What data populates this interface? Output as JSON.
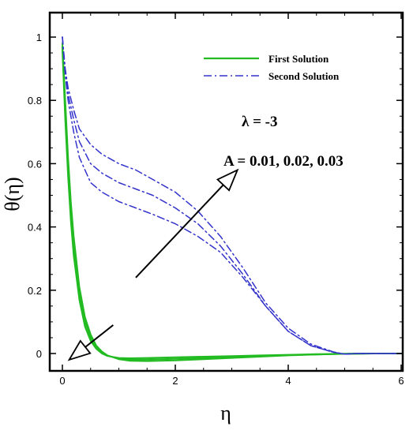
{
  "chart_data": {
    "type": "line",
    "xlabel": "η",
    "ylabel": "θ(η)",
    "xlim": [
      0,
      6
    ],
    "ylim": [
      -0.05,
      1.05
    ],
    "xticks": [
      0,
      2,
      4,
      6
    ],
    "yticks": [
      0,
      0.2,
      0.4,
      0.6,
      0.8,
      1
    ],
    "grid": false,
    "legend_position": "top-right",
    "legend": [
      {
        "label": "First Solution",
        "style": "solid",
        "color": "#22bb22"
      },
      {
        "label": "Second Solution",
        "style": "dash-dot",
        "color": "#3333cc"
      }
    ],
    "annotations": {
      "lambda": "λ = -3",
      "A_values": "A = 0.01, 0.02, 0.03"
    },
    "series": [
      {
        "group": "first",
        "color": "#22bb22",
        "style": "solid",
        "x": [
          0,
          0.05,
          0.1,
          0.15,
          0.2,
          0.3,
          0.4,
          0.5,
          0.6,
          0.7,
          0.8,
          1.0,
          1.2,
          1.5,
          2.0,
          2.5,
          3.0,
          3.5,
          4.0,
          4.5,
          5.0,
          5.5,
          6.0
        ],
        "y": [
          0.96,
          0.74,
          0.56,
          0.42,
          0.31,
          0.17,
          0.085,
          0.04,
          0.015,
          0.0,
          -0.008,
          -0.014,
          -0.015,
          -0.014,
          -0.012,
          -0.01,
          -0.008,
          -0.006,
          -0.004,
          -0.002,
          -0.001,
          0.0,
          0.0
        ]
      },
      {
        "group": "first",
        "color": "#22bb22",
        "style": "solid",
        "x": [
          0,
          0.05,
          0.1,
          0.15,
          0.2,
          0.3,
          0.4,
          0.5,
          0.6,
          0.7,
          0.8,
          1.0,
          1.2,
          1.5,
          2.0,
          2.5,
          3.0,
          3.5,
          4.0,
          4.5,
          5.0,
          5.5,
          6.0
        ],
        "y": [
          0.97,
          0.77,
          0.59,
          0.45,
          0.34,
          0.19,
          0.1,
          0.05,
          0.02,
          0.003,
          -0.007,
          -0.016,
          -0.019,
          -0.019,
          -0.017,
          -0.014,
          -0.011,
          -0.008,
          -0.005,
          -0.003,
          -0.001,
          0.0,
          0.0
        ]
      },
      {
        "group": "first",
        "color": "#22bb22",
        "style": "solid",
        "x": [
          0,
          0.05,
          0.1,
          0.15,
          0.2,
          0.3,
          0.4,
          0.5,
          0.6,
          0.7,
          0.8,
          1.0,
          1.2,
          1.5,
          2.0,
          2.5,
          3.0,
          3.5,
          4.0,
          4.5,
          5.0,
          5.5,
          6.0
        ],
        "y": [
          0.98,
          0.8,
          0.62,
          0.48,
          0.37,
          0.21,
          0.115,
          0.06,
          0.025,
          0.006,
          -0.006,
          -0.018,
          -0.023,
          -0.024,
          -0.022,
          -0.018,
          -0.014,
          -0.01,
          -0.006,
          -0.003,
          -0.001,
          0.0,
          0.0
        ]
      },
      {
        "group": "second",
        "color": "#3333cc",
        "style": "dash-dot",
        "x": [
          0,
          0.05,
          0.1,
          0.2,
          0.3,
          0.5,
          0.7,
          1.0,
          1.3,
          1.6,
          2.0,
          2.4,
          2.8,
          3.2,
          3.6,
          4.0,
          4.4,
          4.8,
          5.0,
          5.2,
          5.5,
          6.0
        ],
        "y": [
          1.0,
          0.88,
          0.8,
          0.7,
          0.62,
          0.54,
          0.51,
          0.48,
          0.46,
          0.44,
          0.41,
          0.37,
          0.32,
          0.24,
          0.15,
          0.07,
          0.025,
          0.004,
          -0.002,
          0.0,
          0.0,
          0.0
        ]
      },
      {
        "group": "second",
        "color": "#3333cc",
        "style": "dash-dot",
        "x": [
          0,
          0.05,
          0.1,
          0.2,
          0.3,
          0.5,
          0.7,
          1.0,
          1.3,
          1.6,
          2.0,
          2.4,
          2.8,
          3.2,
          3.6,
          4.0,
          4.4,
          4.8,
          5.0,
          5.2,
          5.5,
          6.0
        ],
        "y": [
          1.0,
          0.89,
          0.82,
          0.74,
          0.67,
          0.6,
          0.57,
          0.54,
          0.52,
          0.5,
          0.46,
          0.41,
          0.34,
          0.25,
          0.15,
          0.07,
          0.025,
          0.004,
          -0.002,
          0.0,
          0.0,
          0.0
        ]
      },
      {
        "group": "second",
        "color": "#3333cc",
        "style": "dash-dot",
        "x": [
          0,
          0.05,
          0.1,
          0.2,
          0.3,
          0.5,
          0.7,
          1.0,
          1.3,
          1.6,
          2.0,
          2.4,
          2.8,
          3.2,
          3.6,
          4.0,
          4.4,
          4.8,
          5.0,
          5.2,
          5.5,
          6.0
        ],
        "y": [
          1.0,
          0.9,
          0.84,
          0.77,
          0.71,
          0.66,
          0.63,
          0.6,
          0.58,
          0.55,
          0.51,
          0.45,
          0.37,
          0.27,
          0.16,
          0.08,
          0.03,
          0.005,
          -0.002,
          0.0,
          0.0,
          0.0
        ]
      }
    ],
    "arrows": [
      {
        "from": [
          1.3,
          0.24
        ],
        "to": [
          3.1,
          0.58
        ],
        "direction": "up-right"
      },
      {
        "from": [
          0.9,
          0.09
        ],
        "to": [
          0.12,
          -0.02
        ],
        "direction": "down-left"
      }
    ]
  }
}
